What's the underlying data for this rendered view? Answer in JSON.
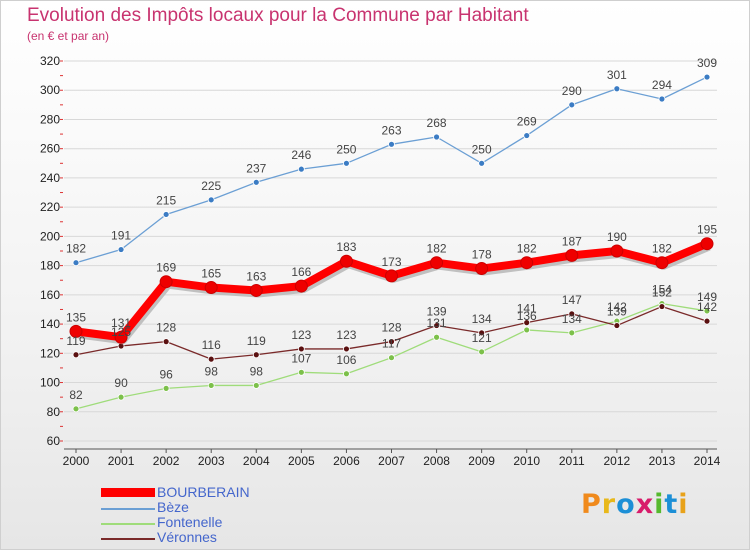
{
  "title": "Evolution des Impôts locaux pour la Commune par Habitant",
  "subtitle": "(en € et par an)",
  "logo": {
    "text": "Proxiti",
    "letters": [
      "P",
      "r",
      "o",
      "x",
      "i",
      "t",
      "i"
    ],
    "colors": [
      "#f08a1c",
      "#e8b81a",
      "#1c8fd6",
      "#d81c6b",
      "#56b92e",
      "#1c8fd6",
      "#e8a21a"
    ]
  },
  "chart_data": {
    "type": "line",
    "title": "Evolution des Impôts locaux pour la Commune par Habitant",
    "subtitle": "(en € et par an)",
    "xlabel": "",
    "ylabel": "",
    "categories": [
      "2000",
      "2001",
      "2002",
      "2003",
      "2004",
      "2005",
      "2006",
      "2007",
      "2008",
      "2009",
      "2010",
      "2011",
      "2012",
      "2013",
      "2014"
    ],
    "ylim": [
      60,
      320
    ],
    "yticks": [
      60,
      80,
      100,
      120,
      140,
      160,
      180,
      200,
      220,
      240,
      260,
      280,
      300,
      320
    ],
    "grid": "horizontal",
    "legend_position": "bottom-left",
    "series": [
      {
        "name": "Bèze",
        "color": "#6b9fd4",
        "marker": "#3b7cc4",
        "values": [
          182,
          191,
          215,
          225,
          237,
          246,
          250,
          263,
          268,
          250,
          269,
          290,
          301,
          294,
          309
        ]
      },
      {
        "name": "Fontenelle",
        "color": "#9fdc7a",
        "marker": "#7cc04a",
        "values": [
          82,
          90,
          96,
          98,
          98,
          107,
          106,
          117,
          131,
          121,
          136,
          134,
          142,
          154,
          149
        ]
      },
      {
        "name": "Véronnes",
        "color": "#7a2a2a",
        "marker": "#5a1010",
        "values": [
          119,
          125,
          128,
          116,
          119,
          123,
          123,
          128,
          139,
          134,
          141,
          147,
          139,
          152,
          142
        ]
      },
      {
        "name": "BOURBERAIN",
        "color": "#ff0000",
        "marker": "#ee0000",
        "values": [
          135,
          131,
          169,
          165,
          163,
          166,
          183,
          173,
          182,
          178,
          182,
          187,
          190,
          182,
          195
        ]
      }
    ]
  }
}
